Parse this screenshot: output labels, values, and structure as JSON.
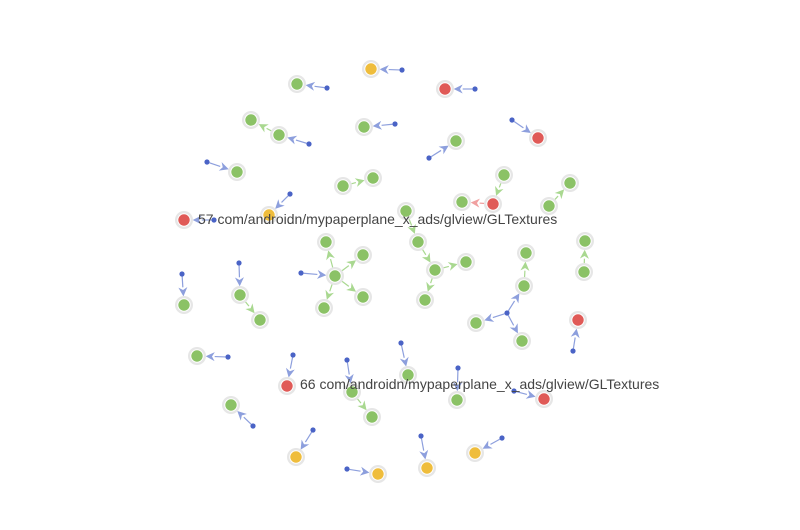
{
  "graph": {
    "colors": {
      "green": "#8bc266",
      "yellow": "#efbd3c",
      "red": "#e05a57",
      "blue": "#4a63c6",
      "edge_blue": "#8d9fdd",
      "edge_green": "#a9d890",
      "edge_red": "#f0a0a0",
      "halo": "#e6e6e6"
    },
    "labels": [
      {
        "id": "n57",
        "text": "57 com/androidn/mypaperplane_x_ads/glview/GLTextures"
      },
      {
        "id": "n66",
        "text": "66 com/androidn/mypaperplane_x_ads/glview/GLTextures"
      }
    ]
  }
}
